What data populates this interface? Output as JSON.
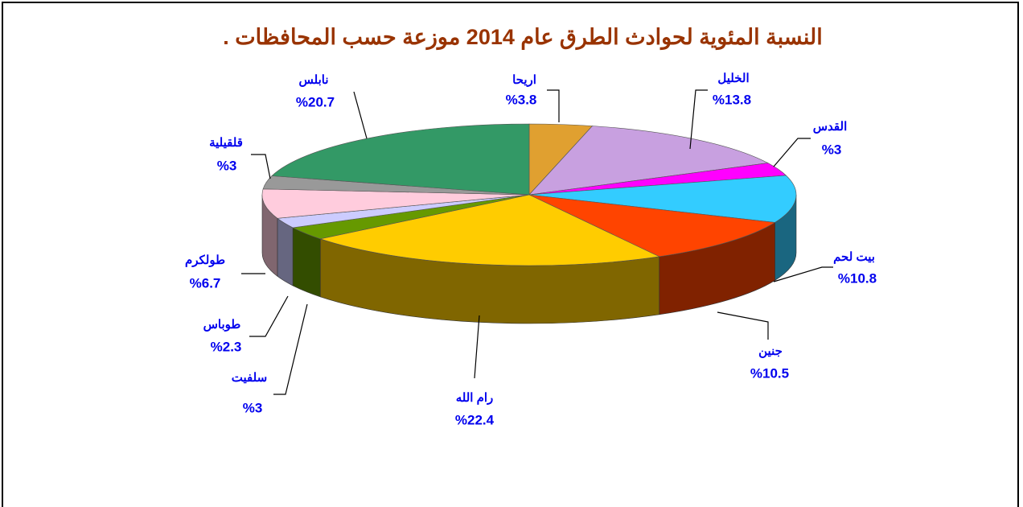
{
  "chart_data": {
    "type": "pie3d",
    "title": "النسبة المئوية لحوادث الطرق عام 2014 موزعة حسب المحافظات .",
    "categories": [
      "اريحا",
      "الخليل",
      "القدس",
      "بيت لحم",
      "جنين",
      "رام الله",
      "سلفيت",
      "طوباس",
      "طولكرم",
      "قلقيلية",
      "نابلس"
    ],
    "values": [
      3.8,
      13.8,
      3,
      10.8,
      10.5,
      22.4,
      3,
      2.3,
      6.7,
      3,
      20.7
    ],
    "value_labels": [
      "%3.8",
      "%13.8",
      "%3",
      "%10.8",
      "%10.5",
      "%22.4",
      "%3",
      "%2.3",
      "%6.7",
      "%3",
      "%20.7"
    ],
    "colors": [
      "#e0a030",
      "#c8a0e0",
      "#ff00ff",
      "#33ccff",
      "#ff4400",
      "#ffcc00",
      "#669900",
      "#ccccff",
      "#ffccdd",
      "#999999",
      "#339966"
    ]
  }
}
